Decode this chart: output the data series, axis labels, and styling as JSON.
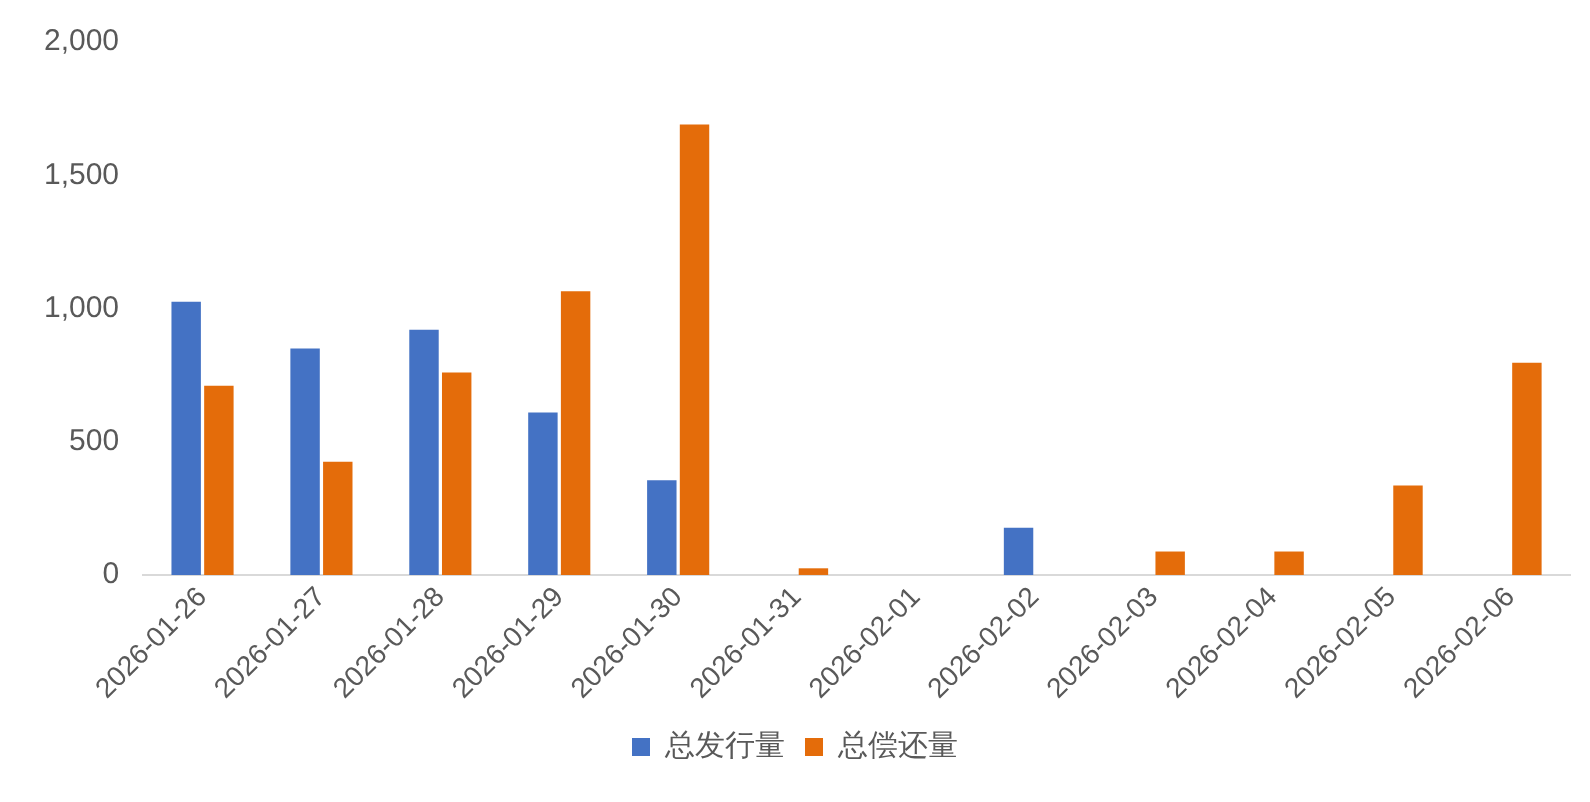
{
  "chart_data": {
    "type": "bar",
    "categories": [
      "2026-01-26",
      "2026-01-27",
      "2026-01-28",
      "2026-01-29",
      "2026-01-30",
      "2026-01-31",
      "2026-02-01",
      "2026-02-02",
      "2026-02-03",
      "2026-02-04",
      "2026-02-05",
      "2026-02-06"
    ],
    "series": [
      {
        "name": "总发行量",
        "color": "#4472c4",
        "values": [
          1025,
          850,
          920,
          610,
          355,
          0,
          0,
          177,
          0,
          0,
          0,
          0
        ]
      },
      {
        "name": "总偿还量",
        "color": "#e46c0a",
        "values": [
          710,
          425,
          760,
          1065,
          1690,
          25,
          0,
          0,
          88,
          88,
          336,
          796
        ]
      }
    ],
    "ylim": [
      0,
      2000
    ],
    "yticks": [
      0,
      500,
      {
        "value": 1000,
        "label": "1,000"
      },
      {
        "value": 1500,
        "label": "1,500"
      },
      {
        "value": 2000,
        "label": "2,000"
      }
    ],
    "grid": false,
    "legend": "bottom"
  }
}
